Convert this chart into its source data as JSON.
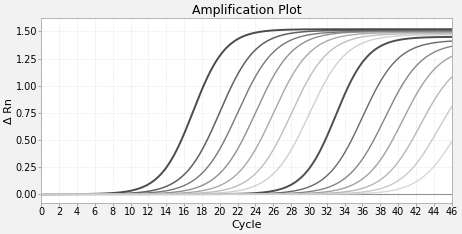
{
  "title": "Amplification Plot",
  "xlabel": "Cycle",
  "ylabel": "Δ Rn",
  "xlim": [
    0,
    46
  ],
  "ylim": [
    -0.08,
    1.62
  ],
  "xticks": [
    0,
    2,
    4,
    6,
    8,
    10,
    12,
    14,
    16,
    18,
    20,
    22,
    24,
    26,
    28,
    30,
    32,
    34,
    36,
    38,
    40,
    42,
    44,
    46
  ],
  "yticks": [
    0.0,
    0.25,
    0.5,
    0.75,
    1.0,
    1.25,
    1.5
  ],
  "background_color": "#f2f2f2",
  "plot_bg_color": "#ffffff",
  "grid_color": "#d8d8d8",
  "curves": [
    {
      "ct": 17.0,
      "plateau": 1.52,
      "color": "#383838",
      "lw": 1.4,
      "k": 0.55
    },
    {
      "ct": 20.0,
      "plateau": 1.51,
      "color": "#505050",
      "lw": 1.1,
      "k": 0.5
    },
    {
      "ct": 22.0,
      "plateau": 1.5,
      "color": "#686868",
      "lw": 1.0,
      "k": 0.48
    },
    {
      "ct": 24.0,
      "plateau": 1.5,
      "color": "#848484",
      "lw": 1.0,
      "k": 0.48
    },
    {
      "ct": 26.0,
      "plateau": 1.49,
      "color": "#a0a0a0",
      "lw": 1.0,
      "k": 0.48
    },
    {
      "ct": 28.0,
      "plateau": 1.48,
      "color": "#b8b8b8",
      "lw": 1.0,
      "k": 0.48
    },
    {
      "ct": 30.0,
      "plateau": 1.47,
      "color": "#cccccc",
      "lw": 1.0,
      "k": 0.48
    },
    {
      "ct": 33.0,
      "plateau": 1.45,
      "color": "#3c3c3c",
      "lw": 1.4,
      "k": 0.55
    },
    {
      "ct": 36.0,
      "plateau": 1.42,
      "color": "#585858",
      "lw": 1.0,
      "k": 0.5
    },
    {
      "ct": 38.5,
      "plateau": 1.4,
      "color": "#787878",
      "lw": 1.0,
      "k": 0.48
    },
    {
      "ct": 40.5,
      "plateau": 1.36,
      "color": "#989898",
      "lw": 1.0,
      "k": 0.48
    },
    {
      "ct": 42.5,
      "plateau": 1.28,
      "color": "#b0b0b0",
      "lw": 1.0,
      "k": 0.48
    },
    {
      "ct": 44.5,
      "plateau": 1.2,
      "color": "#c4c4c4",
      "lw": 1.0,
      "k": 0.48
    },
    {
      "ct": 46.5,
      "plateau": 1.1,
      "color": "#d4d4d4",
      "lw": 1.0,
      "k": 0.48
    }
  ],
  "flat_lines": [
    {
      "y": 0.0,
      "color": "#505050",
      "lw": 0.8
    }
  ],
  "title_fontsize": 9,
  "label_fontsize": 8,
  "tick_fontsize": 7
}
